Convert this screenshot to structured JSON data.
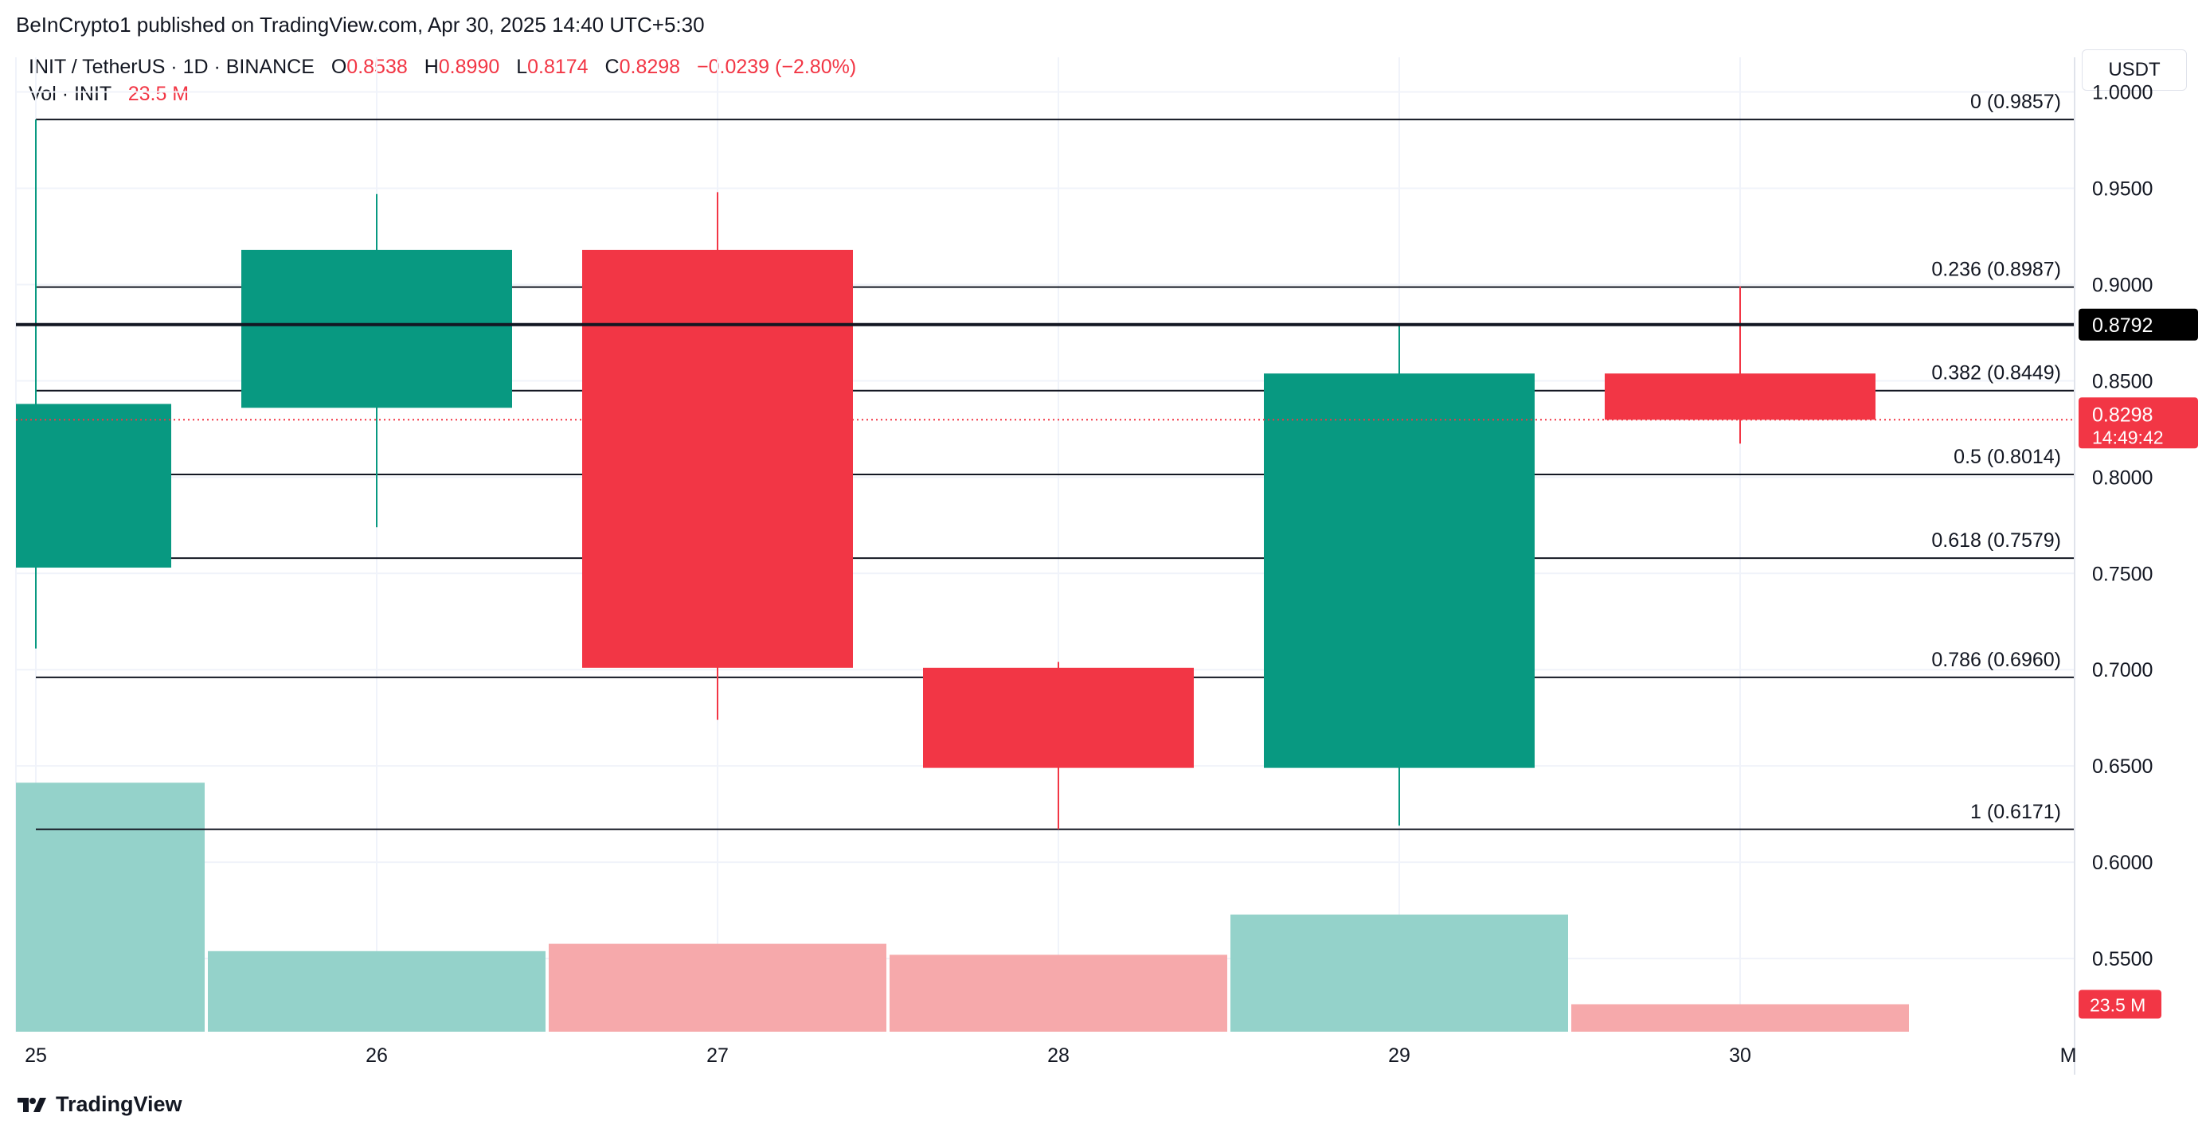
{
  "header": {
    "published": "BeInCrypto1 published on TradingView.com, Apr 30, 2025 14:40 UTC+5:30"
  },
  "legend": {
    "symbol": "INIT / TetherUS · 1D · BINANCE",
    "o_label": "O",
    "o_value": "0.8538",
    "h_label": "H",
    "h_value": "0.8990",
    "l_label": "L",
    "l_value": "0.8174",
    "c_label": "C",
    "c_value": "0.8298",
    "change": "−0.0239 (−2.80%)",
    "vol_label": "Vol · INIT",
    "vol_value": "23.5 M"
  },
  "currency_button": "USDT",
  "footer": {
    "brand": "TradingView"
  },
  "colors": {
    "up": "#089981",
    "down": "#f23645",
    "vol_up": "#94d2ca",
    "vol_down": "#f6a9ab",
    "grid": "#f0f3fa",
    "fib_line": "#131722"
  },
  "chart_data": {
    "type": "candlestick",
    "x": [
      "25",
      "26",
      "27",
      "28",
      "29",
      "30"
    ],
    "x_extra_tick": "M",
    "candles": [
      {
        "x": "25",
        "open": 0.753,
        "high": 0.9857,
        "low": 0.711,
        "close": 0.838
      },
      {
        "x": "26",
        "open": 0.836,
        "high": 0.947,
        "low": 0.774,
        "close": 0.918
      },
      {
        "x": "27",
        "open": 0.918,
        "high": 0.948,
        "low": 0.674,
        "close": 0.701
      },
      {
        "x": "28",
        "open": 0.701,
        "high": 0.704,
        "low": 0.6171,
        "close": 0.649
      },
      {
        "x": "29",
        "open": 0.649,
        "high": 0.879,
        "low": 0.619,
        "close": 0.8538
      },
      {
        "x": "30",
        "open": 0.8538,
        "high": 0.899,
        "low": 0.8174,
        "close": 0.8298
      }
    ],
    "volume_label_value": "23.5 M",
    "volume_relative": [
      0.68,
      0.22,
      0.24,
      0.21,
      0.32,
      0.075
    ],
    "y_ticks": [
      "1.0000",
      "0.9500",
      "0.9000",
      "0.8500",
      "0.8000",
      "0.7500",
      "0.7000",
      "0.6500",
      "0.6000",
      "0.5500"
    ],
    "ylim": [
      0.512,
      1.018
    ],
    "fib_levels": [
      {
        "level": "0",
        "value": 0.9857,
        "label": "0 (0.9857)"
      },
      {
        "level": "0.236",
        "value": 0.8987,
        "label": "0.236 (0.8987)"
      },
      {
        "level": "0.382",
        "value": 0.8449,
        "label": "0.382 (0.8449)"
      },
      {
        "level": "0.5",
        "value": 0.8014,
        "label": "0.5 (0.8014)"
      },
      {
        "level": "0.618",
        "value": 0.7579,
        "label": "0.618 (0.7579)"
      },
      {
        "level": "0.786",
        "value": 0.696,
        "label": "0.786 (0.6960)"
      },
      {
        "level": "1",
        "value": 0.6171,
        "label": "1 (0.6171)"
      }
    ],
    "horizontal_line": {
      "value": 0.8792,
      "label": "0.8792"
    },
    "last_price": {
      "value": 0.8298,
      "label": "0.8298",
      "countdown": "14:49:42"
    },
    "volume_badge": "23.5 M",
    "grid": true
  }
}
